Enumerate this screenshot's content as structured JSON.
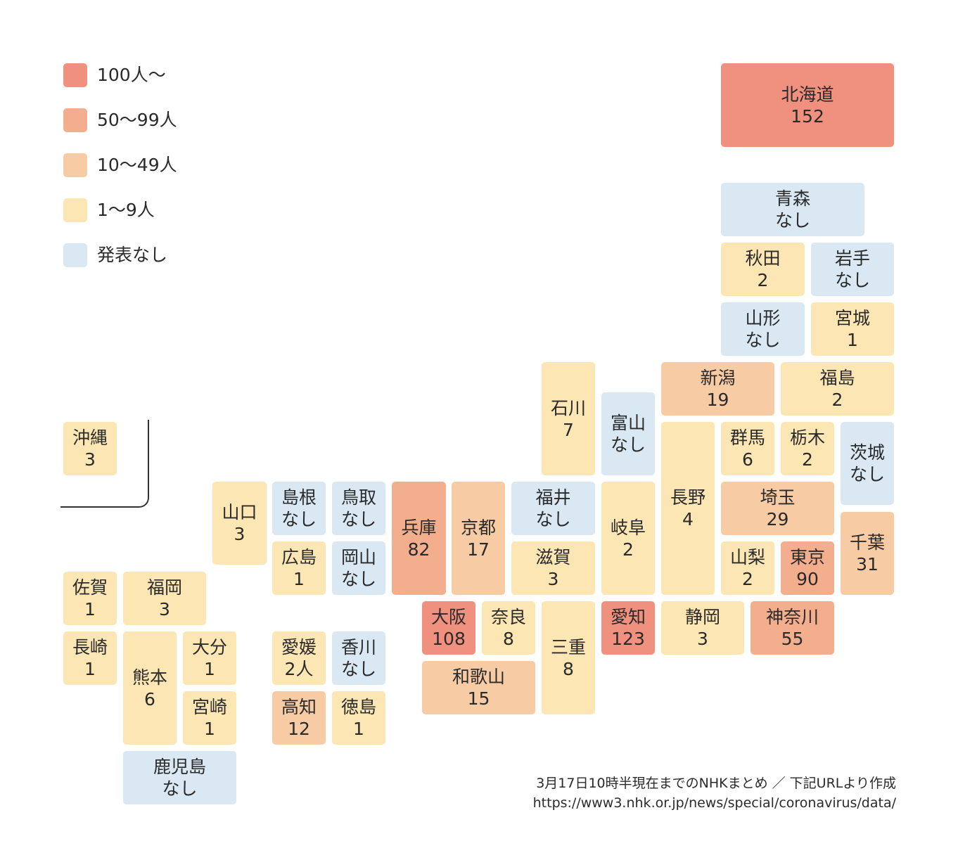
{
  "colors": {
    "over100": "#f0907e",
    "r50_99": "#f3ae8e",
    "r10_49": "#f7cba4",
    "r1_9": "#fbe6b4",
    "none": "#d9e8f3"
  },
  "legend": [
    {
      "label": "100人〜",
      "color": "#f0907e"
    },
    {
      "label": "50〜99人",
      "color": "#f3ae8e"
    },
    {
      "label": "10〜49人",
      "color": "#f7cba4"
    },
    {
      "label": "1〜9人",
      "color": "#fbe6b4"
    },
    {
      "label": "発表なし",
      "color": "#d9e8f3"
    }
  ],
  "prefectures": [
    {
      "id": "hokkaido",
      "name": "北海道",
      "value": "152",
      "category": "over100"
    },
    {
      "id": "aomori",
      "name": "青森",
      "value": "なし",
      "category": "none"
    },
    {
      "id": "akita",
      "name": "秋田",
      "value": "2",
      "category": "r1_9"
    },
    {
      "id": "iwate",
      "name": "岩手",
      "value": "なし",
      "category": "none"
    },
    {
      "id": "yamagata",
      "name": "山形",
      "value": "なし",
      "category": "none"
    },
    {
      "id": "miyagi",
      "name": "宮城",
      "value": "1",
      "category": "r1_9"
    },
    {
      "id": "ishikawa",
      "name": "石川",
      "value": "7",
      "category": "r1_9"
    },
    {
      "id": "niigata",
      "name": "新潟",
      "value": "19",
      "category": "r10_49"
    },
    {
      "id": "fukushima",
      "name": "福島",
      "value": "2",
      "category": "r1_9"
    },
    {
      "id": "toyama",
      "name": "富山",
      "value": "なし",
      "category": "none"
    },
    {
      "id": "nagano",
      "name": "長野",
      "value": "4",
      "category": "r1_9"
    },
    {
      "id": "gunma",
      "name": "群馬",
      "value": "6",
      "category": "r1_9"
    },
    {
      "id": "tochigi",
      "name": "栃木",
      "value": "2",
      "category": "r1_9"
    },
    {
      "id": "ibaraki",
      "name": "茨城",
      "value": "なし",
      "category": "none"
    },
    {
      "id": "okinawa",
      "name": "沖縄",
      "value": "3",
      "category": "r1_9"
    },
    {
      "id": "yamaguchi",
      "name": "山口",
      "value": "3",
      "category": "r1_9"
    },
    {
      "id": "shimane",
      "name": "島根",
      "value": "なし",
      "category": "none"
    },
    {
      "id": "tottori",
      "name": "鳥取",
      "value": "なし",
      "category": "none"
    },
    {
      "id": "hyogo",
      "name": "兵庫",
      "value": "82",
      "category": "r50_99"
    },
    {
      "id": "kyoto",
      "name": "京都",
      "value": "17",
      "category": "r10_49"
    },
    {
      "id": "fukui",
      "name": "福井",
      "value": "なし",
      "category": "none"
    },
    {
      "id": "gifu",
      "name": "岐阜",
      "value": "2",
      "category": "r1_9"
    },
    {
      "id": "saitama",
      "name": "埼玉",
      "value": "29",
      "category": "r10_49"
    },
    {
      "id": "chiba",
      "name": "千葉",
      "value": "31",
      "category": "r10_49"
    },
    {
      "id": "hiroshima",
      "name": "広島",
      "value": "1",
      "category": "r1_9"
    },
    {
      "id": "okayama",
      "name": "岡山",
      "value": "なし",
      "category": "none"
    },
    {
      "id": "shiga",
      "name": "滋賀",
      "value": "3",
      "category": "r1_9"
    },
    {
      "id": "yamanashi",
      "name": "山梨",
      "value": "2",
      "category": "r1_9"
    },
    {
      "id": "tokyo",
      "name": "東京",
      "value": "90",
      "category": "r50_99"
    },
    {
      "id": "saga",
      "name": "佐賀",
      "value": "1",
      "category": "r1_9"
    },
    {
      "id": "fukuoka",
      "name": "福岡",
      "value": "3",
      "category": "r1_9"
    },
    {
      "id": "osaka",
      "name": "大阪",
      "value": "108",
      "category": "over100"
    },
    {
      "id": "nara",
      "name": "奈良",
      "value": "8",
      "category": "r1_9"
    },
    {
      "id": "mie",
      "name": "三重",
      "value": "8",
      "category": "r1_9"
    },
    {
      "id": "aichi",
      "name": "愛知",
      "value": "123",
      "category": "over100"
    },
    {
      "id": "shizuoka",
      "name": "静岡",
      "value": "3",
      "category": "r1_9"
    },
    {
      "id": "kanagawa",
      "name": "神奈川",
      "value": "55",
      "category": "r50_99"
    },
    {
      "id": "nagasaki",
      "name": "長崎",
      "value": "1",
      "category": "r1_9"
    },
    {
      "id": "kumamoto",
      "name": "熊本",
      "value": "6",
      "category": "r1_9"
    },
    {
      "id": "oita",
      "name": "大分",
      "value": "1",
      "category": "r1_9"
    },
    {
      "id": "ehime",
      "name": "愛媛",
      "value": "2人",
      "category": "r1_9"
    },
    {
      "id": "kagawa",
      "name": "香川",
      "value": "なし",
      "category": "none"
    },
    {
      "id": "wakayama",
      "name": "和歌山",
      "value": "15",
      "category": "r10_49"
    },
    {
      "id": "miyazaki",
      "name": "宮崎",
      "value": "1",
      "category": "r1_9"
    },
    {
      "id": "kochi",
      "name": "高知",
      "value": "12",
      "category": "r10_49"
    },
    {
      "id": "tokushima",
      "name": "徳島",
      "value": "1",
      "category": "r1_9"
    },
    {
      "id": "kagoshima",
      "name": "鹿児島",
      "value": "なし",
      "category": "none"
    }
  ],
  "footer": {
    "note": "3月17日10時半現在までのNHKまとめ ／ 下記URLより作成",
    "url": "https://www3.nhk.or.jp/news/special/coronavirus/data/"
  }
}
